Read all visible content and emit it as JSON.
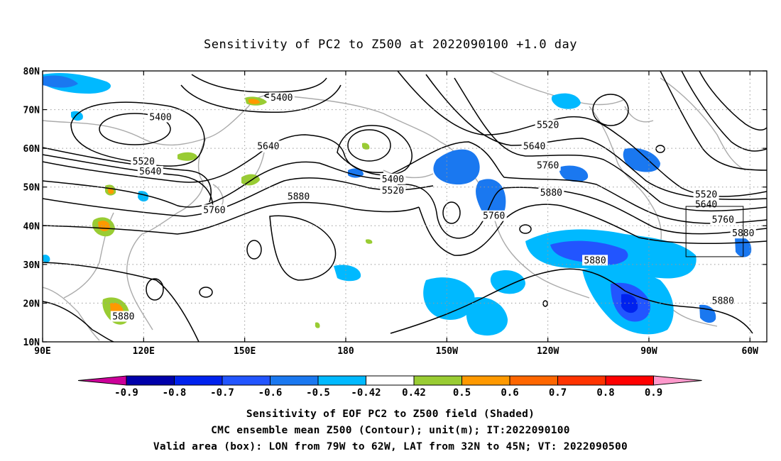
{
  "title": "Sensitivity of PC2 to Z500 at 2022090100 +1.0 day",
  "map": {
    "lon_range": [
      90,
      305
    ],
    "lat_range": [
      10,
      80
    ],
    "x_ticks": [
      {
        "lon": 90,
        "label": "90E"
      },
      {
        "lon": 120,
        "label": "120E"
      },
      {
        "lon": 150,
        "label": "150E"
      },
      {
        "lon": 180,
        "label": "180"
      },
      {
        "lon": 210,
        "label": "150W"
      },
      {
        "lon": 240,
        "label": "120W"
      },
      {
        "lon": 270,
        "label": "90W"
      },
      {
        "lon": 300,
        "label": "60W"
      }
    ],
    "y_ticks": [
      {
        "lat": 10,
        "label": "10N"
      },
      {
        "lat": 20,
        "label": "20N"
      },
      {
        "lat": 30,
        "label": "30N"
      },
      {
        "lat": 40,
        "label": "40N"
      },
      {
        "lat": 50,
        "label": "50N"
      },
      {
        "lat": 60,
        "label": "60N"
      },
      {
        "lat": 70,
        "label": "70N"
      },
      {
        "lat": 80,
        "label": "80N"
      }
    ],
    "contour_labels": [
      {
        "text": "5400",
        "lon": 161,
        "lat": 73
      },
      {
        "text": "5400",
        "lon": 125,
        "lat": 68
      },
      {
        "text": "5400",
        "lon": 194,
        "lat": 52
      },
      {
        "text": "5520",
        "lon": 120,
        "lat": 56.5
      },
      {
        "text": "5520",
        "lon": 240,
        "lat": 66
      },
      {
        "text": "5520",
        "lon": 194,
        "lat": 49
      },
      {
        "text": "5520",
        "lon": 287,
        "lat": 48
      },
      {
        "text": "5640",
        "lon": 157,
        "lat": 60.5
      },
      {
        "text": "5640",
        "lon": 122,
        "lat": 54
      },
      {
        "text": "5640",
        "lon": 236,
        "lat": 60.5
      },
      {
        "text": "5640",
        "lon": 287,
        "lat": 45.5
      },
      {
        "text": "5760",
        "lon": 141,
        "lat": 44
      },
      {
        "text": "5760",
        "lon": 224,
        "lat": 42.5
      },
      {
        "text": "5760",
        "lon": 240,
        "lat": 55.5
      },
      {
        "text": "5760",
        "lon": 292,
        "lat": 41.5
      },
      {
        "text": "5880",
        "lon": 166,
        "lat": 47.5
      },
      {
        "text": "5880",
        "lon": 241,
        "lat": 48.5
      },
      {
        "text": "5880",
        "lon": 254,
        "lat": 31
      },
      {
        "text": "5880",
        "lon": 114,
        "lat": 16.5
      },
      {
        "text": "5880",
        "lon": 298,
        "lat": 38
      },
      {
        "text": "5880",
        "lon": 292,
        "lat": 20.5
      }
    ],
    "valid_box": {
      "lon": [
        281,
        298
      ],
      "lat": [
        32,
        45
      ]
    }
  },
  "colorbar": {
    "ticks": [
      "-0.9",
      "-0.8",
      "-0.7",
      "-0.6",
      "-0.5",
      "-0.42",
      "0.42",
      "0.5",
      "0.6",
      "0.7",
      "0.8",
      "0.9"
    ],
    "colors": [
      "#0000aa",
      "#0022ee",
      "#2255ff",
      "#1a78f0",
      "#00b9ff",
      "#ffffff",
      "#99cc33",
      "#ff9900",
      "#ff6600",
      "#ff3300",
      "#ff0000"
    ],
    "low_color": "#cc0099",
    "high_color": "#ff99cc"
  },
  "captions": {
    "line1": "Sensitivity of EOF PC2 to Z500 field (Shaded)",
    "line2": "CMC ensemble mean Z500 (Contour); unit(m); IT:2022090100",
    "line3": "Valid area (box): LON from 79W to 62W, LAT from 32N to 45N; VT: 2022090500"
  }
}
